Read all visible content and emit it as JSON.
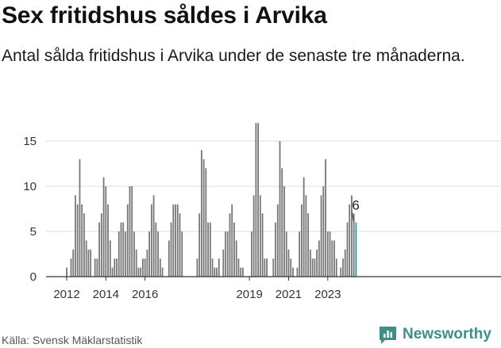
{
  "title": "Sex fritidshus såldes i Arvika",
  "subtitle": "Antal sålda fritidshus i Arvika under de senaste tre månaderna.",
  "source": "Källa: Svensk Mäklarstatistik",
  "brand": "Newsworthy",
  "colors": {
    "bar": "#777777",
    "highlight": "#2a9d95",
    "brand": "#3d8f88",
    "grid": "#dcdcdc"
  },
  "icons": {
    "brand_logo": "newsworthy-chat-bar-icon"
  },
  "chart_data": {
    "type": "bar",
    "title": "Sex fritidshus såldes i Arvika",
    "xlabel": "",
    "ylabel": "",
    "ylim": [
      0,
      17.5
    ],
    "y_ticks": [
      0,
      5,
      10,
      15
    ],
    "x_ticks": [
      "2012",
      "2014",
      "2016",
      "2019",
      "2021",
      "2023"
    ],
    "x_tick_index": [
      0,
      18,
      36,
      84,
      102,
      120
    ],
    "value_label": "6",
    "values": [
      1,
      0,
      2,
      3,
      9,
      8,
      13,
      8,
      7,
      4,
      3,
      3,
      0,
      2,
      2,
      6,
      7,
      11,
      10,
      8,
      4,
      1,
      2,
      2,
      5,
      6,
      6,
      5,
      8,
      10,
      10,
      5,
      3,
      1,
      1,
      2,
      2,
      3,
      5,
      8,
      9,
      6,
      5,
      2,
      1,
      0,
      0,
      4,
      6,
      8,
      8,
      8,
      7,
      5,
      0,
      0,
      0,
      0,
      0,
      0,
      2,
      7,
      14,
      13,
      12,
      6,
      6,
      2,
      1,
      1,
      2,
      0,
      3,
      5,
      5,
      7,
      8,
      6,
      4,
      2,
      1,
      1,
      0,
      0,
      0,
      5,
      9,
      17,
      17,
      9,
      7,
      2,
      2,
      0,
      0,
      2,
      6,
      8,
      15,
      12,
      10,
      5,
      3,
      2,
      1,
      0,
      1,
      5,
      8,
      11,
      9,
      7,
      3,
      2,
      2,
      3,
      4,
      9,
      10,
      13,
      5,
      5,
      4,
      4,
      2,
      0,
      1,
      2,
      3,
      6,
      8,
      9,
      7,
      6
    ]
  }
}
